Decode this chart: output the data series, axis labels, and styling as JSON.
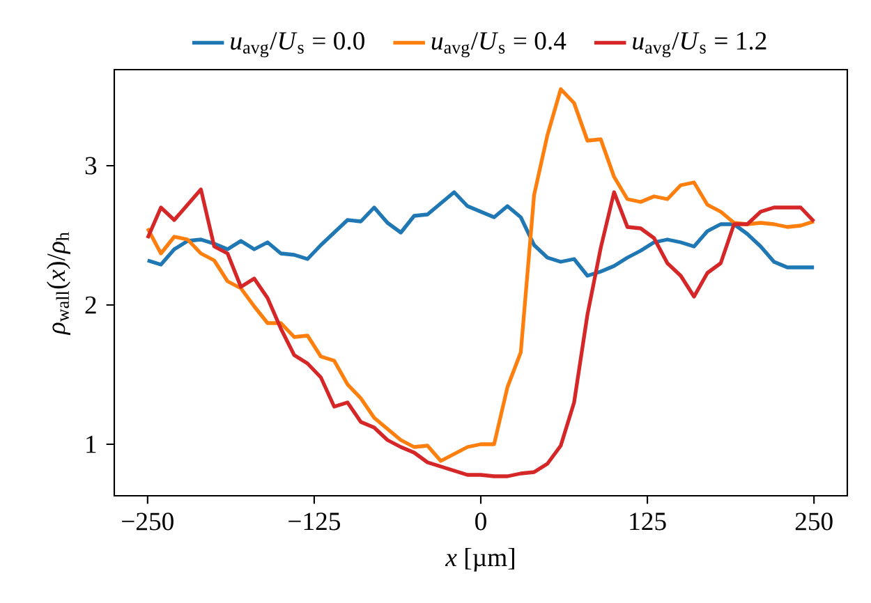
{
  "chart_data": {
    "type": "line",
    "xlabel": "*x* [µm]",
    "ylabel": "*ρ*$_{wall}$(*x*)/*ρ*$_{h}$",
    "x": [
      -250,
      -240,
      -230,
      -220,
      -210,
      -200,
      -190,
      -180,
      -170,
      -160,
      -150,
      -140,
      -130,
      -120,
      -110,
      -100,
      -90,
      -80,
      -70,
      -60,
      -50,
      -40,
      -30,
      -20,
      -10,
      0,
      10,
      20,
      30,
      40,
      50,
      60,
      70,
      80,
      90,
      100,
      110,
      120,
      130,
      140,
      150,
      160,
      170,
      180,
      190,
      200,
      210,
      220,
      230,
      240,
      250
    ],
    "series": [
      {
        "name": "*u*$_{avg}$/*U*$_{s}$ = 0.0",
        "color": "#1f77b4",
        "values": [
          2.32,
          2.29,
          2.4,
          2.46,
          2.47,
          2.44,
          2.4,
          2.46,
          2.4,
          2.45,
          2.37,
          2.36,
          2.33,
          2.43,
          2.52,
          2.61,
          2.6,
          2.7,
          2.59,
          2.52,
          2.64,
          2.65,
          2.73,
          2.81,
          2.71,
          2.67,
          2.63,
          2.71,
          2.63,
          2.43,
          2.34,
          2.31,
          2.33,
          2.21,
          2.24,
          2.28,
          2.34,
          2.39,
          2.45,
          2.47,
          2.45,
          2.42,
          2.53,
          2.58,
          2.58,
          2.51,
          2.42,
          2.31,
          2.27,
          2.27,
          2.27
        ]
      },
      {
        "name": "*u*$_{avg}$/*U*$_{s}$ = 0.4",
        "color": "#ff7f0e",
        "values": [
          2.55,
          2.37,
          2.49,
          2.47,
          2.37,
          2.32,
          2.17,
          2.12,
          1.99,
          1.87,
          1.87,
          1.77,
          1.78,
          1.63,
          1.6,
          1.43,
          1.33,
          1.19,
          1.11,
          1.03,
          0.98,
          0.99,
          0.88,
          0.93,
          0.98,
          1.0,
          1.0,
          1.41,
          1.66,
          2.79,
          3.22,
          3.55,
          3.45,
          3.18,
          3.19,
          2.92,
          2.76,
          2.74,
          2.78,
          2.76,
          2.86,
          2.88,
          2.72,
          2.67,
          2.59,
          2.58,
          2.59,
          2.58,
          2.56,
          2.57,
          2.6
        ]
      },
      {
        "name": "*u*$_{avg}$/*U*$_{s}$ = 1.2",
        "color": "#d62728",
        "values": [
          2.48,
          2.7,
          2.61,
          2.72,
          2.83,
          2.42,
          2.37,
          2.13,
          2.19,
          2.05,
          1.83,
          1.64,
          1.58,
          1.48,
          1.27,
          1.3,
          1.16,
          1.12,
          1.03,
          0.98,
          0.94,
          0.87,
          0.84,
          0.81,
          0.78,
          0.78,
          0.77,
          0.77,
          0.79,
          0.8,
          0.86,
          0.99,
          1.3,
          1.93,
          2.41,
          2.81,
          2.56,
          2.55,
          2.48,
          2.3,
          2.21,
          2.06,
          2.23,
          2.3,
          2.58,
          2.58,
          2.67,
          2.7,
          2.7,
          2.7,
          2.6
        ]
      }
    ],
    "xlim": [
      -275,
      275
    ],
    "ylim": [
      0.63,
      3.69
    ],
    "xticks": [
      {
        "value": -250,
        "label": "−250"
      },
      {
        "value": -125,
        "label": "−125"
      },
      0,
      125,
      250
    ],
    "yticks": [
      1,
      2,
      3
    ],
    "legend": "top",
    "grid": false
  }
}
